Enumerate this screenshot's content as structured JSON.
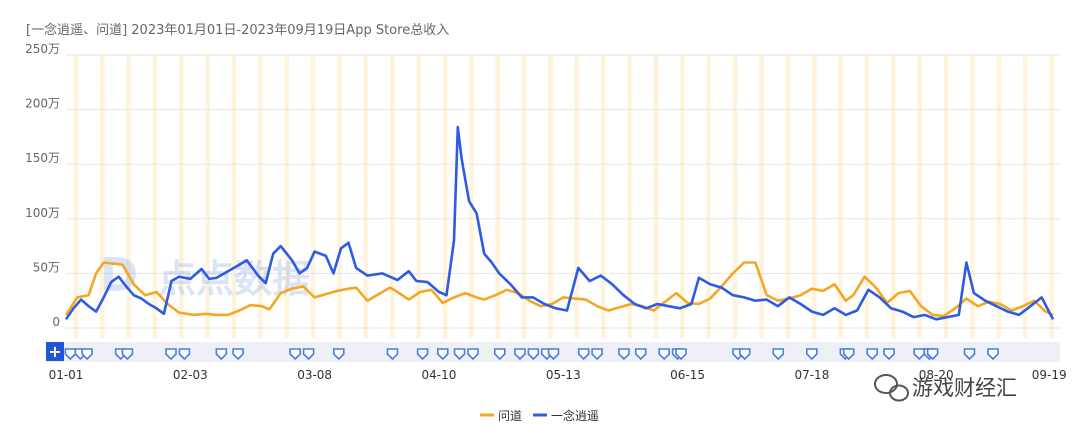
{
  "chart_data": {
    "type": "line",
    "title": "[一念逍遥、问道] 2023年01月01日-2023年09月19日App Store总收入",
    "x_ticks": [
      "01-01",
      "02-03",
      "03-08",
      "04-10",
      "05-13",
      "06-15",
      "07-18",
      "08-20",
      "09-19"
    ],
    "y_ticks": [
      "0",
      "50万",
      "100万",
      "150万",
      "200万",
      "250万"
    ],
    "ylim": [
      0,
      250
    ],
    "yunit": "万",
    "xrange_days": 262,
    "grid": "horizontal",
    "legend_position": "bottom-center",
    "series": [
      {
        "name": "问道",
        "color": "#f5a623",
        "values": [
          [
            0,
            12
          ],
          [
            3,
            28
          ],
          [
            6,
            30
          ],
          [
            8,
            50
          ],
          [
            10,
            60
          ],
          [
            15,
            58
          ],
          [
            18,
            40
          ],
          [
            21,
            30
          ],
          [
            24,
            33
          ],
          [
            27,
            22
          ],
          [
            30,
            14
          ],
          [
            34,
            12
          ],
          [
            37,
            13
          ],
          [
            40,
            12
          ],
          [
            43,
            12
          ],
          [
            46,
            16
          ],
          [
            49,
            21
          ],
          [
            52,
            20
          ],
          [
            54,
            17
          ],
          [
            57,
            32
          ],
          [
            60,
            36
          ],
          [
            63,
            38
          ],
          [
            66,
            28
          ],
          [
            69,
            31
          ],
          [
            72,
            34
          ],
          [
            75,
            36
          ],
          [
            77,
            37
          ],
          [
            80,
            25
          ],
          [
            83,
            31
          ],
          [
            86,
            37
          ],
          [
            88,
            33
          ],
          [
            91,
            26
          ],
          [
            94,
            33
          ],
          [
            97,
            35
          ],
          [
            100,
            23
          ],
          [
            103,
            28
          ],
          [
            106,
            32
          ],
          [
            109,
            28
          ],
          [
            111,
            26
          ],
          [
            114,
            30
          ],
          [
            117,
            35
          ],
          [
            120,
            32
          ],
          [
            123,
            25
          ],
          [
            126,
            20
          ],
          [
            129,
            22
          ],
          [
            132,
            28
          ],
          [
            135,
            27
          ],
          [
            138,
            26
          ],
          [
            141,
            20
          ],
          [
            144,
            16
          ],
          [
            147,
            19
          ],
          [
            150,
            22
          ],
          [
            153,
            20
          ],
          [
            156,
            16
          ],
          [
            159,
            24
          ],
          [
            162,
            32
          ],
          [
            165,
            23
          ],
          [
            168,
            22
          ],
          [
            171,
            27
          ],
          [
            174,
            38
          ],
          [
            177,
            50
          ],
          [
            180,
            60
          ],
          [
            183,
            60
          ],
          [
            186,
            30
          ],
          [
            189,
            25
          ],
          [
            192,
            27
          ],
          [
            195,
            30
          ],
          [
            198,
            36
          ],
          [
            201,
            34
          ],
          [
            204,
            40
          ],
          [
            207,
            25
          ],
          [
            209,
            30
          ],
          [
            212,
            47
          ],
          [
            215,
            37
          ],
          [
            218,
            23
          ],
          [
            221,
            32
          ],
          [
            224,
            34
          ],
          [
            227,
            20
          ],
          [
            230,
            12
          ],
          [
            233,
            11
          ],
          [
            236,
            18
          ],
          [
            239,
            27
          ],
          [
            242,
            20
          ],
          [
            245,
            24
          ],
          [
            248,
            22
          ],
          [
            251,
            16
          ],
          [
            254,
            20
          ],
          [
            257,
            25
          ],
          [
            260,
            15
          ],
          [
            262,
            12
          ]
        ]
      },
      {
        "name": "一念逍遥",
        "color": "#2d5be3",
        "values": [
          [
            0,
            8
          ],
          [
            2,
            18
          ],
          [
            4,
            26
          ],
          [
            6,
            20
          ],
          [
            8,
            15
          ],
          [
            10,
            28
          ],
          [
            12,
            42
          ],
          [
            14,
            47
          ],
          [
            16,
            38
          ],
          [
            18,
            30
          ],
          [
            20,
            27
          ],
          [
            22,
            22
          ],
          [
            24,
            18
          ],
          [
            26,
            13
          ],
          [
            28,
            43
          ],
          [
            30,
            47
          ],
          [
            33,
            45
          ],
          [
            36,
            54
          ],
          [
            38,
            45
          ],
          [
            40,
            46
          ],
          [
            43,
            52
          ],
          [
            46,
            58
          ],
          [
            48,
            62
          ],
          [
            51,
            48
          ],
          [
            53,
            41
          ],
          [
            55,
            68
          ],
          [
            57,
            75
          ],
          [
            60,
            62
          ],
          [
            62,
            50
          ],
          [
            64,
            55
          ],
          [
            66,
            70
          ],
          [
            69,
            66
          ],
          [
            71,
            50
          ],
          [
            73,
            73
          ],
          [
            75,
            78
          ],
          [
            77,
            55
          ],
          [
            80,
            48
          ],
          [
            84,
            50
          ],
          [
            88,
            44
          ],
          [
            91,
            52
          ],
          [
            93,
            43
          ],
          [
            96,
            42
          ],
          [
            99,
            33
          ],
          [
            101,
            30
          ],
          [
            103,
            80
          ],
          [
            104,
            184
          ],
          [
            105,
            155
          ],
          [
            107,
            116
          ],
          [
            109,
            105
          ],
          [
            111,
            68
          ],
          [
            113,
            60
          ],
          [
            115,
            50
          ],
          [
            118,
            40
          ],
          [
            121,
            28
          ],
          [
            124,
            28
          ],
          [
            127,
            22
          ],
          [
            130,
            18
          ],
          [
            133,
            16
          ],
          [
            136,
            55
          ],
          [
            139,
            43
          ],
          [
            142,
            48
          ],
          [
            145,
            40
          ],
          [
            148,
            30
          ],
          [
            151,
            22
          ],
          [
            154,
            18
          ],
          [
            157,
            22
          ],
          [
            160,
            20
          ],
          [
            163,
            18
          ],
          [
            166,
            22
          ],
          [
            168,
            46
          ],
          [
            171,
            40
          ],
          [
            174,
            37
          ],
          [
            177,
            30
          ],
          [
            180,
            28
          ],
          [
            183,
            25
          ],
          [
            186,
            26
          ],
          [
            189,
            20
          ],
          [
            192,
            28
          ],
          [
            195,
            22
          ],
          [
            198,
            15
          ],
          [
            201,
            12
          ],
          [
            204,
            18
          ],
          [
            207,
            12
          ],
          [
            210,
            16
          ],
          [
            213,
            35
          ],
          [
            216,
            28
          ],
          [
            219,
            18
          ],
          [
            222,
            15
          ],
          [
            225,
            10
          ],
          [
            228,
            12
          ],
          [
            231,
            8
          ],
          [
            234,
            10
          ],
          [
            237,
            12
          ],
          [
            239,
            60
          ],
          [
            241,
            32
          ],
          [
            244,
            25
          ],
          [
            247,
            20
          ],
          [
            250,
            15
          ],
          [
            253,
            12
          ],
          [
            256,
            20
          ],
          [
            259,
            28
          ],
          [
            262,
            8
          ]
        ]
      }
    ]
  },
  "watermark": {
    "text": "点点数据",
    "logo_letter": "D"
  },
  "brand": {
    "text": "游戏财经汇"
  },
  "navigator": {
    "add_label": "+"
  },
  "colors": {
    "axis": "#666666",
    "grid": "#e6e6e6",
    "title": "#666666",
    "navigator_bg": "#eef0f5",
    "navigator_button": "#1f56d6",
    "event_marker": "#4a7de0",
    "weekend_band": "#fff3dc"
  }
}
